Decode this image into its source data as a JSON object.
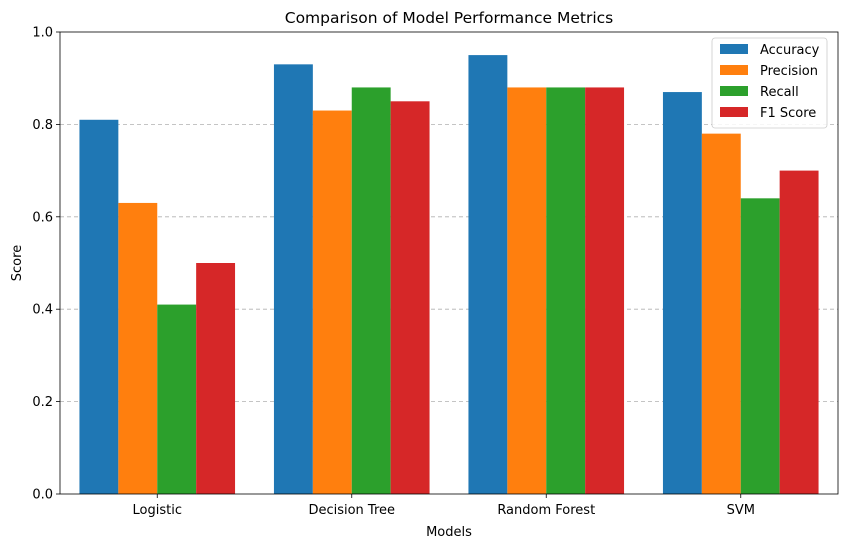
{
  "chart_data": {
    "type": "bar",
    "title": "Comparison of Model Performance Metrics",
    "xlabel": "Models",
    "ylabel": "Score",
    "ylim": [
      0,
      1.0
    ],
    "yticks": [
      "0.0",
      "0.2",
      "0.4",
      "0.6",
      "0.8",
      "1.0"
    ],
    "grid": "y-dashed",
    "legend_position": "top-right",
    "categories": [
      "Logistic",
      "Decision Tree",
      "Random Forest",
      "SVM"
    ],
    "series": [
      {
        "name": "Accuracy",
        "color": "#1f77b4",
        "values": [
          0.81,
          0.93,
          0.95,
          0.87
        ]
      },
      {
        "name": "Precision",
        "color": "#ff7f0e",
        "values": [
          0.63,
          0.83,
          0.88,
          0.78
        ]
      },
      {
        "name": "Recall",
        "color": "#2ca02c",
        "values": [
          0.41,
          0.88,
          0.88,
          0.64
        ]
      },
      {
        "name": "F1 Score",
        "color": "#d62728",
        "values": [
          0.5,
          0.85,
          0.88,
          0.7
        ]
      }
    ]
  }
}
